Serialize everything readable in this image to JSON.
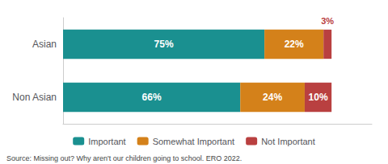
{
  "chart_data": {
    "type": "bar",
    "orientation": "horizontal",
    "stacked": true,
    "categories": [
      "Non Asian",
      "Asian"
    ],
    "series": [
      {
        "name": "Important",
        "color": "#1a9090",
        "values": [
          66,
          75
        ],
        "value_labels": [
          "66%",
          "75%"
        ]
      },
      {
        "name": "Somewhat Important",
        "color": "#d4811a",
        "values": [
          24,
          22
        ],
        "value_labels": [
          "24%",
          "22%"
        ]
      },
      {
        "name": "Not Important",
        "color": "#b94040",
        "values": [
          10,
          3
        ],
        "value_labels": [
          "10%",
          null
        ]
      }
    ],
    "annotations": [
      {
        "text": "3%",
        "category": "Asian",
        "series": "Not Important"
      }
    ],
    "source": "Source: Missing out? Why aren't our children going to school. ERO 2022.",
    "xlim": [
      0,
      115
    ],
    "data_labels": true,
    "tick_labels": "y",
    "grid": false,
    "legend": "bottom"
  }
}
